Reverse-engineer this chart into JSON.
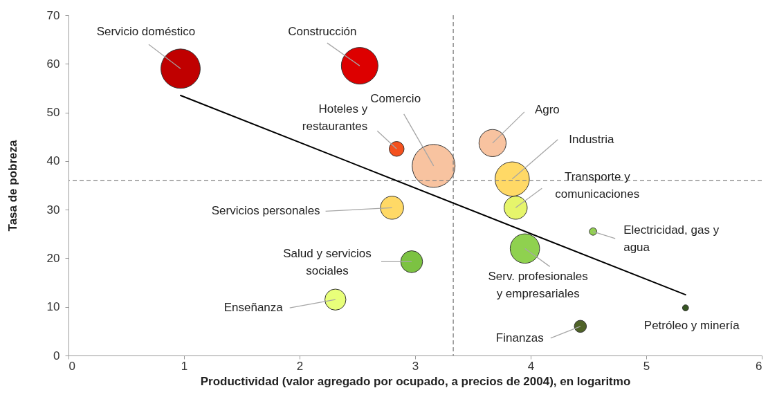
{
  "chart_data": {
    "type": "bubble",
    "xlabel": "Productividad (valor agregado por ocupado, a precios de 2004), en logaritmo",
    "ylabel": "Tasa de pobreza",
    "xlim": [
      0,
      6
    ],
    "ylim": [
      0,
      70
    ],
    "xticks": [
      0,
      1,
      2,
      3,
      4,
      5,
      6
    ],
    "yticks": [
      0,
      10,
      20,
      30,
      40,
      50,
      60,
      70
    ],
    "series": [
      {
        "name": "Servicio doméstico",
        "color": "#c00000",
        "x": [
          0.97
        ],
        "values": [
          59.0
        ],
        "sizes": [
          0.84
        ]
      },
      {
        "name": "Construcción",
        "color": "#dd0000",
        "x": [
          2.52
        ],
        "values": [
          59.6
        ],
        "sizes": [
          0.73
        ]
      },
      {
        "name": "Hoteles y restaurantes",
        "color": "#f4511e",
        "x": [
          2.84
        ],
        "values": [
          42.5
        ],
        "sizes": [
          0.12
        ]
      },
      {
        "name": "Comercio",
        "color": "#f8c3a0",
        "x": [
          3.16
        ],
        "values": [
          39.0
        ],
        "sizes": [
          1
        ]
      },
      {
        "name": "Agro",
        "color": "#f8c3a0",
        "x": [
          3.67
        ],
        "values": [
          43.7
        ],
        "sizes": [
          0.4
        ]
      },
      {
        "name": "Industria",
        "color": "#ffd966",
        "x": [
          3.84
        ],
        "values": [
          36.3
        ],
        "sizes": [
          0.64
        ]
      },
      {
        "name": "Transporte y comunicaciones",
        "color": "#e6f56b",
        "x": [
          3.87
        ],
        "values": [
          30.4
        ],
        "sizes": [
          0.29
        ]
      },
      {
        "name": "Servicios personales",
        "color": "#ffd966",
        "x": [
          2.8
        ],
        "values": [
          30.4
        ],
        "sizes": [
          0.29
        ]
      },
      {
        "name": "Electricidad, gas y agua",
        "color": "#92d050",
        "x": [
          4.54
        ],
        "values": [
          25.5
        ],
        "sizes": [
          0.03
        ]
      },
      {
        "name": "Salud y servicios sociales",
        "color": "#7cc242",
        "x": [
          2.97
        ],
        "values": [
          19.3
        ],
        "sizes": [
          0.26
        ]
      },
      {
        "name": "Serv. profesionales y empresariales",
        "color": "#8fd14f",
        "x": [
          3.95
        ],
        "values": [
          22.0
        ],
        "sizes": [
          0.47
        ]
      },
      {
        "name": "Enseñanza",
        "color": "#e8ff7a",
        "x": [
          2.31
        ],
        "values": [
          11.5
        ],
        "sizes": [
          0.24
        ]
      },
      {
        "name": "Petróleo y minería",
        "color": "#375623",
        "x": [
          5.34
        ],
        "values": [
          9.8
        ],
        "sizes": [
          0.02
        ]
      },
      {
        "name": "Finanzas",
        "color": "#4f6228",
        "x": [
          4.43
        ],
        "values": [
          6.0
        ],
        "sizes": [
          0.08
        ]
      },
      {
        "type": "line",
        "color": "#000000",
        "x": [
          0.97,
          5.34
        ],
        "values": [
          53.5,
          12.5
        ]
      }
    ],
    "ref_lines": [
      {
        "axis": "x",
        "value": 3.33,
        "color": "#808080",
        "line_style": "dashed"
      },
      {
        "axis": "y",
        "value": 36,
        "color": "#808080",
        "line_style": "dashed"
      }
    ]
  }
}
